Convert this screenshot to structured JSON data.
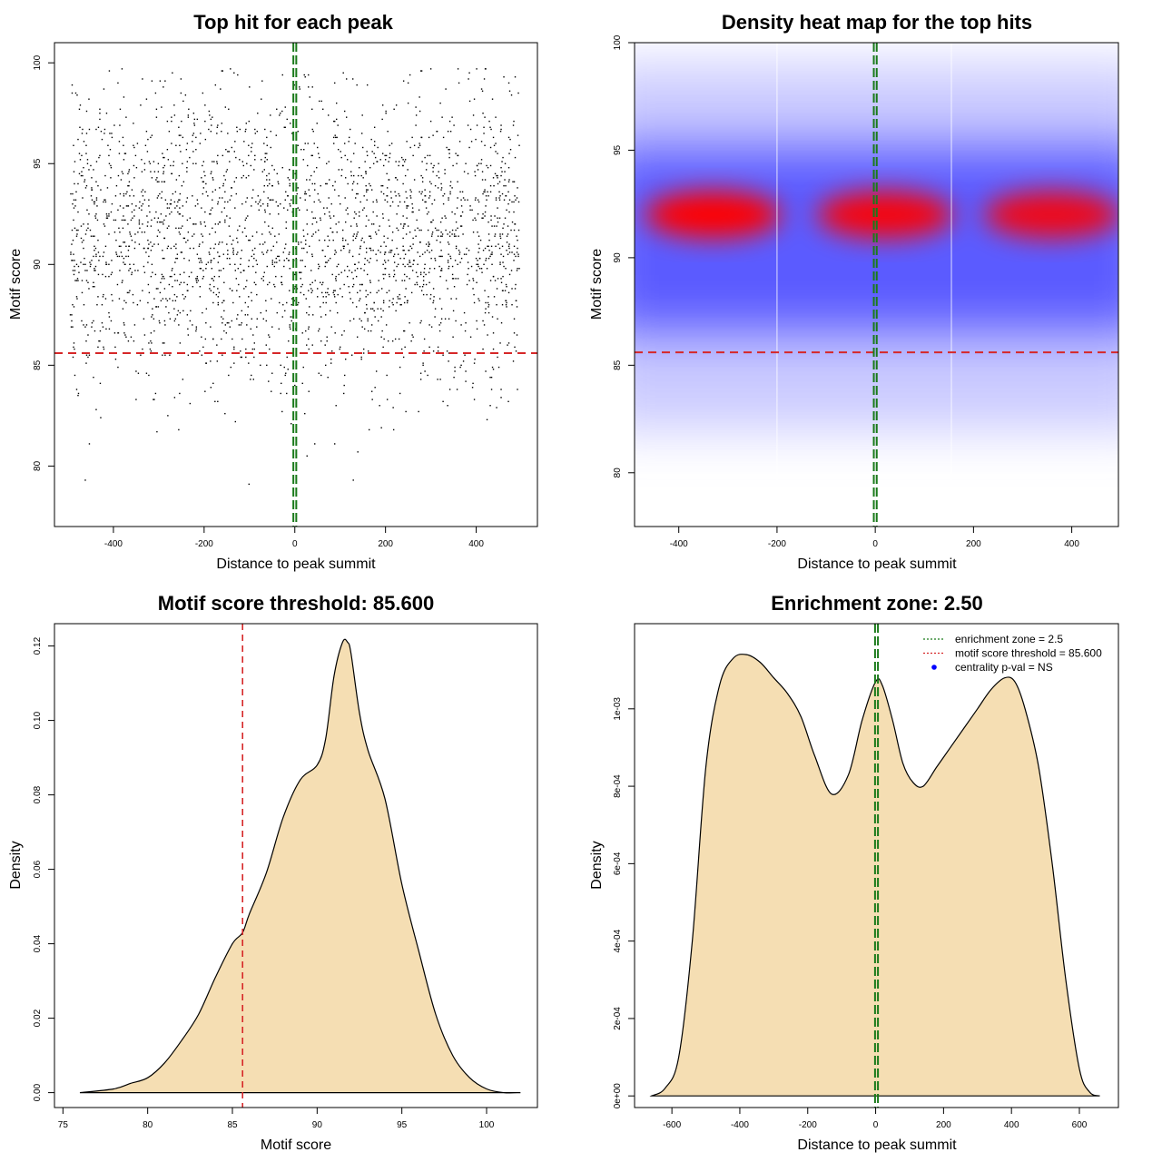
{
  "chart_data": [
    {
      "type": "scatter",
      "title": "Top hit for each peak",
      "xlabel": "Distance to peak summit",
      "ylabel": "Motif score",
      "xlim": [
        -530,
        535
      ],
      "ylim": [
        77,
        101
      ],
      "xticks": [
        -400,
        -200,
        0,
        200,
        400
      ],
      "yticks": [
        80,
        85,
        90,
        95,
        100
      ],
      "point_count": 2600,
      "hlines": [
        {
          "y": 85.6,
          "color": "#d62728",
          "style": "dashed"
        }
      ],
      "vlines": [
        {
          "x": 0,
          "color": "#1a7a1a",
          "style": "double-dashed"
        }
      ]
    },
    {
      "type": "heatmap",
      "title": "Density heat map for the top hits",
      "xlabel": "Distance to peak summit",
      "ylabel": "Motif score",
      "xlim": [
        -490,
        495
      ],
      "ylim": [
        77.5,
        100
      ],
      "xticks": [
        -400,
        -200,
        0,
        200,
        400
      ],
      "yticks": [
        80,
        85,
        90,
        95,
        100
      ],
      "density_centers": [
        {
          "x": -330,
          "y": 92,
          "intensity": 1.0
        },
        {
          "x": 20,
          "y": 92,
          "intensity": 0.95
        },
        {
          "x": 360,
          "y": 92,
          "intensity": 0.9
        }
      ],
      "white_vlines": [
        -200,
        155
      ],
      "hlines": [
        {
          "y": 85.6,
          "color": "#d62728",
          "style": "dashed"
        }
      ],
      "vlines": [
        {
          "x": 0,
          "color": "#1a7a1a",
          "style": "double-dashed"
        }
      ]
    },
    {
      "type": "area",
      "title": "Motif score threshold: 85.600",
      "xlabel": "Motif score",
      "ylabel": "Density",
      "xlim": [
        74.5,
        103
      ],
      "ylim": [
        -0.004,
        0.126
      ],
      "xticks": [
        75,
        80,
        85,
        90,
        95,
        100
      ],
      "yticks": [
        0.0,
        0.02,
        0.04,
        0.06,
        0.08,
        0.1,
        0.12
      ],
      "ytick_labels": [
        "0.00",
        "0.02",
        "0.04",
        "0.06",
        "0.08",
        "0.10",
        "0.12"
      ],
      "x": [
        76,
        78,
        79,
        80,
        81,
        82,
        83,
        84,
        85,
        85.6,
        86,
        87,
        88,
        89,
        90,
        90.5,
        91,
        91.5,
        91.8,
        92,
        92.5,
        93,
        94,
        95,
        96,
        97,
        98,
        99,
        100,
        101,
        102
      ],
      "y": [
        0.0,
        0.001,
        0.0025,
        0.004,
        0.008,
        0.014,
        0.021,
        0.031,
        0.04,
        0.043,
        0.048,
        0.059,
        0.074,
        0.084,
        0.088,
        0.095,
        0.112,
        0.121,
        0.121,
        0.118,
        0.102,
        0.092,
        0.079,
        0.056,
        0.038,
        0.021,
        0.01,
        0.004,
        0.001,
        0.0,
        0.0
      ],
      "fill": "#f5deb3",
      "vlines": [
        {
          "x": 85.6,
          "color": "#d62728",
          "style": "dashed"
        }
      ]
    },
    {
      "type": "area",
      "title": "Enrichment zone: 2.50",
      "xlabel": "Distance to peak summit",
      "ylabel": "Density",
      "xlim": [
        -710,
        715
      ],
      "ylim": [
        -3e-05,
        0.00122
      ],
      "xticks": [
        -600,
        -400,
        -200,
        0,
        200,
        400,
        600
      ],
      "yticks": [
        0,
        0.0002,
        0.0004,
        0.0006,
        0.0008,
        0.001
      ],
      "ytick_labels": [
        "0e+00",
        "2e-04",
        "4e-04",
        "6e-04",
        "8e-04",
        "1e-03"
      ],
      "x": [
        -660,
        -620,
        -580,
        -540,
        -500,
        -460,
        -420,
        -380,
        -340,
        -300,
        -260,
        -220,
        -180,
        -130,
        -80,
        -40,
        0,
        20,
        50,
        80,
        110,
        140,
        180,
        220,
        260,
        300,
        340,
        380,
        410,
        440,
        480,
        520,
        560,
        600,
        630,
        660
      ],
      "y": [
        0.0,
        2e-05,
        0.0001,
        0.0004,
        0.00085,
        0.00106,
        0.00113,
        0.00114,
        0.00112,
        0.00108,
        0.00104,
        0.00098,
        0.00088,
        0.00078,
        0.00083,
        0.00097,
        0.00107,
        0.00106,
        0.00097,
        0.00086,
        0.00081,
        0.0008,
        0.00085,
        0.0009,
        0.00095,
        0.001,
        0.00105,
        0.00108,
        0.00107,
        0.001,
        0.00085,
        0.0006,
        0.0003,
        7e-05,
        1e-05,
        0.0
      ],
      "fill": "#f5deb3",
      "vlines": [
        {
          "x": 2.5,
          "color": "#1a7a1a",
          "style": "double-dashed"
        }
      ],
      "legend": [
        {
          "label": "enrichment zone = 2.5",
          "color": "#1a7a1a",
          "kind": "dotted-line"
        },
        {
          "label": "motif score threshold = 85.600",
          "color": "#d62728",
          "kind": "dotted-line"
        },
        {
          "label": "centrality p-val = NS",
          "color": "#0000ff",
          "kind": "point"
        }
      ],
      "legend_position": "top-right"
    }
  ]
}
